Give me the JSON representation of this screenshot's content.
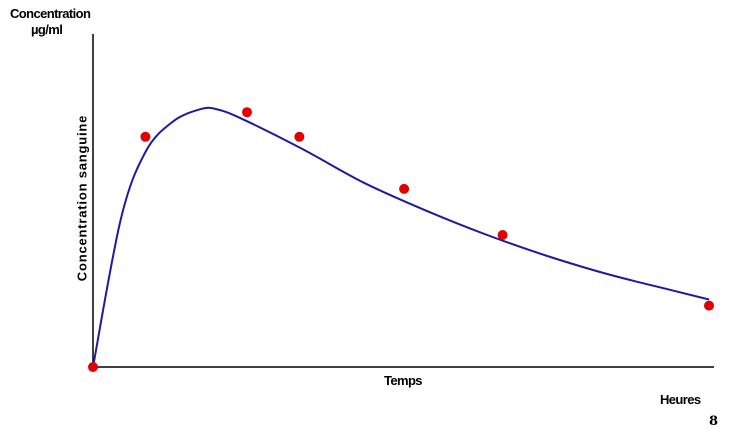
{
  "page_number": "8",
  "colors": {
    "curve": "#1c1c9c",
    "points": "#e00000",
    "axis": "#000000"
  },
  "chart_data": {
    "type": "line",
    "title": "",
    "ylabel_top": [
      "Concentration",
      "µg/ml"
    ],
    "ylabel": "Concentration sanguine",
    "xlabel": "Temps",
    "xunit": "Heures",
    "xlim": [
      0,
      10
    ],
    "ylim": [
      0,
      10
    ],
    "grid": false,
    "legend": "none",
    "series": [
      {
        "type": "line",
        "x": [
          0,
          0.45,
          0.85,
          1.3,
          1.75,
          2.0,
          2.4,
          3.4,
          4.4,
          5.4,
          6.4,
          7.4,
          8.4,
          9.4,
          10.0
        ],
        "y": [
          0,
          4.8,
          7.0,
          8.0,
          8.4,
          8.4,
          8.1,
          7.1,
          6.0,
          5.1,
          4.3,
          3.6,
          3.0,
          2.5,
          2.2
        ]
      },
      {
        "type": "scatter",
        "x": [
          0,
          0.85,
          2.5,
          3.35,
          5.05,
          6.65,
          10.0
        ],
        "y": [
          0,
          7.5,
          8.3,
          7.5,
          5.8,
          4.3,
          2.0
        ]
      }
    ]
  }
}
